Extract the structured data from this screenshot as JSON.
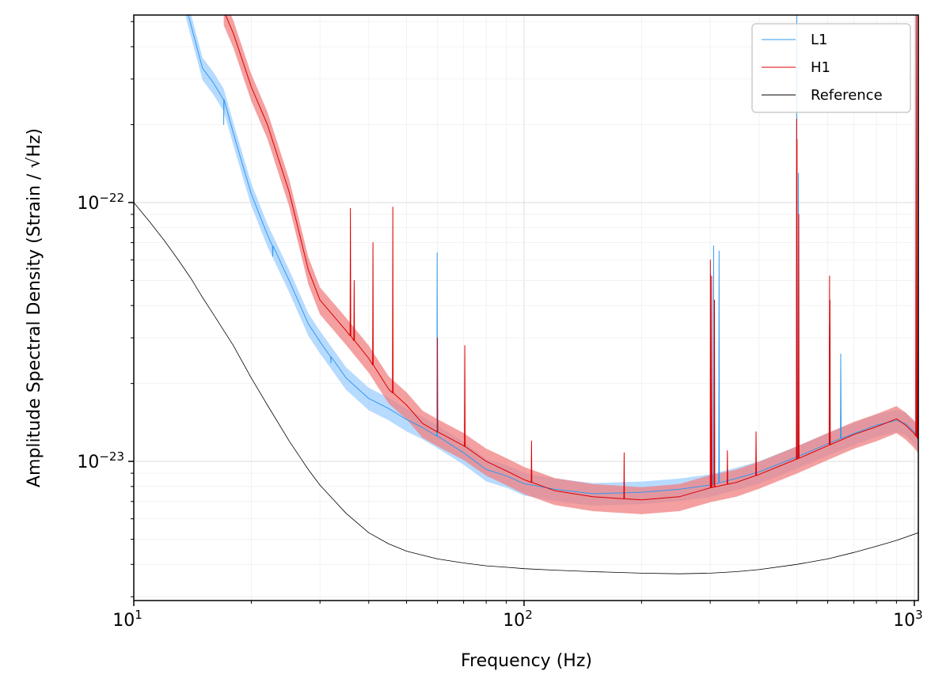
{
  "chart_data": {
    "type": "line",
    "title": "",
    "xlabel": "Frequency (Hz)",
    "ylabel": "Amplitude Spectral Density (Strain / √Hz)",
    "xscale": "log",
    "yscale": "log",
    "xlim": [
      10,
      1024
    ],
    "ylim": [
      2.9e-24,
      5.3e-22
    ],
    "grid": true,
    "legend_position": "top-right",
    "x_ticks": [
      {
        "base": "10",
        "exp": "1",
        "value": 10
      },
      {
        "base": "10",
        "exp": "2",
        "value": 100
      },
      {
        "base": "10",
        "exp": "3",
        "value": 1000
      }
    ],
    "y_ticks": [
      {
        "base": "10",
        "exp": "−22",
        "value": 1e-22
      },
      {
        "base": "10",
        "exp": "−23",
        "value": 1e-23
      }
    ],
    "series": [
      {
        "name": "L1",
        "color": "#3399ee",
        "band_color": "#99ccff",
        "band_factor": 0.1,
        "x": [
          13.5,
          15,
          16,
          17,
          18,
          19,
          20,
          22,
          25,
          28,
          30,
          35,
          40,
          45,
          50,
          55,
          60,
          70,
          80,
          90,
          100,
          120,
          150,
          200,
          250,
          300,
          350,
          400,
          500,
          600,
          700,
          800,
          900,
          950,
          1000,
          1024
        ],
        "y": [
          6e-22,
          3.3e-22,
          2.9e-22,
          2.5e-22,
          1.85e-22,
          1.4e-22,
          1.08e-22,
          7.5e-23,
          5e-23,
          3.4e-23,
          2.9e-23,
          2.1e-23,
          1.75e-23,
          1.6e-23,
          1.45e-23,
          1.35e-23,
          1.25e-23,
          1.08e-23,
          9.3e-24,
          8.8e-24,
          8.2e-24,
          7.8e-24,
          7.5e-24,
          7.6e-24,
          7.8e-24,
          8.1e-24,
          8.6e-24,
          9.1e-24,
          1.04e-23,
          1.17e-23,
          1.28e-23,
          1.38e-23,
          1.44e-23,
          1.4e-23,
          1.3e-23,
          1.2e-23
        ],
        "peaks": [
          [
            17,
            2e-22
          ],
          [
            22.7,
            6.2e-23
          ],
          [
            32,
            2.4e-23
          ],
          [
            59.9,
            6.4e-23
          ],
          [
            300.5,
            5.3e-23
          ],
          [
            306,
            6.8e-23
          ],
          [
            316,
            6.5e-23
          ],
          [
            499.7,
            6e-22
          ],
          [
            504.8,
            1.3e-22
          ],
          [
            606,
            3.4e-23
          ],
          [
            648,
            2.6e-23
          ],
          [
            1010,
            6e-22
          ]
        ]
      },
      {
        "name": "H1",
        "color": "#dd0000",
        "band_color": "#f08080",
        "band_factor": 0.12,
        "x": [
          17,
          18,
          20,
          22,
          25,
          28,
          30,
          35,
          40,
          45,
          50,
          55,
          60,
          70,
          80,
          90,
          100,
          120,
          150,
          200,
          250,
          300,
          350,
          400,
          500,
          600,
          700,
          800,
          900,
          950,
          1000,
          1024
        ],
        "y": [
          5.5e-22,
          4.5e-22,
          2.8e-22,
          2e-22,
          1.1e-22,
          5.5e-23,
          4.2e-23,
          3.2e-23,
          2.5e-23,
          1.9e-23,
          1.65e-23,
          1.4e-23,
          1.3e-23,
          1.15e-23,
          1e-23,
          9.2e-24,
          8.5e-24,
          7.7e-24,
          7.3e-24,
          7.1e-24,
          7.3e-24,
          7.9e-24,
          8.3e-24,
          8.9e-24,
          1.02e-23,
          1.15e-23,
          1.27e-23,
          1.36e-23,
          1.46e-23,
          1.38e-23,
          1.28e-23,
          1.22e-23
        ],
        "peaks": [
          [
            35.9,
            9.5e-23
          ],
          [
            36.7,
            5e-23
          ],
          [
            41,
            7e-23
          ],
          [
            46.1,
            9.6e-23
          ],
          [
            60,
            3e-23
          ],
          [
            70.5,
            2.8e-23
          ],
          [
            104.5,
            1.2e-23
          ],
          [
            180.5,
            1.08e-23
          ],
          [
            300.2,
            6e-23
          ],
          [
            302.5,
            5.2e-23
          ],
          [
            307.5,
            4.2e-23
          ],
          [
            331.9,
            1.1e-23
          ],
          [
            393.1,
            1.3e-23
          ],
          [
            499.5,
            2.1e-22
          ],
          [
            500.6,
            1.75e-22
          ],
          [
            505.8,
            9e-23
          ],
          [
            606.5,
            5.2e-23
          ],
          [
            608,
            4.2e-23
          ],
          [
            1011,
            6e-22
          ],
          [
            1020,
            6e-22
          ]
        ]
      },
      {
        "name": "Reference",
        "color": "#000000",
        "x": [
          10,
          11,
          12,
          13,
          14,
          15,
          16,
          18,
          20,
          22,
          25,
          28,
          30,
          35,
          40,
          45,
          50,
          60,
          70,
          80,
          90,
          100,
          120,
          150,
          200,
          250,
          300,
          350,
          400,
          500,
          600,
          700,
          800,
          900,
          1024
        ],
        "y": [
          1e-22,
          8.4e-23,
          7.1e-23,
          6e-23,
          5.1e-23,
          4.3e-23,
          3.7e-23,
          2.8e-23,
          2.1e-23,
          1.65e-23,
          1.2e-23,
          9.3e-24,
          8.1e-24,
          6.3e-24,
          5.3e-24,
          4.8e-24,
          4.5e-24,
          4.2e-24,
          4.05e-24,
          3.95e-24,
          3.9e-24,
          3.85e-24,
          3.8e-24,
          3.75e-24,
          3.7e-24,
          3.68e-24,
          3.7e-24,
          3.75e-24,
          3.82e-24,
          4e-24,
          4.2e-24,
          4.45e-24,
          4.7e-24,
          4.95e-24,
          5.3e-24
        ]
      }
    ]
  }
}
